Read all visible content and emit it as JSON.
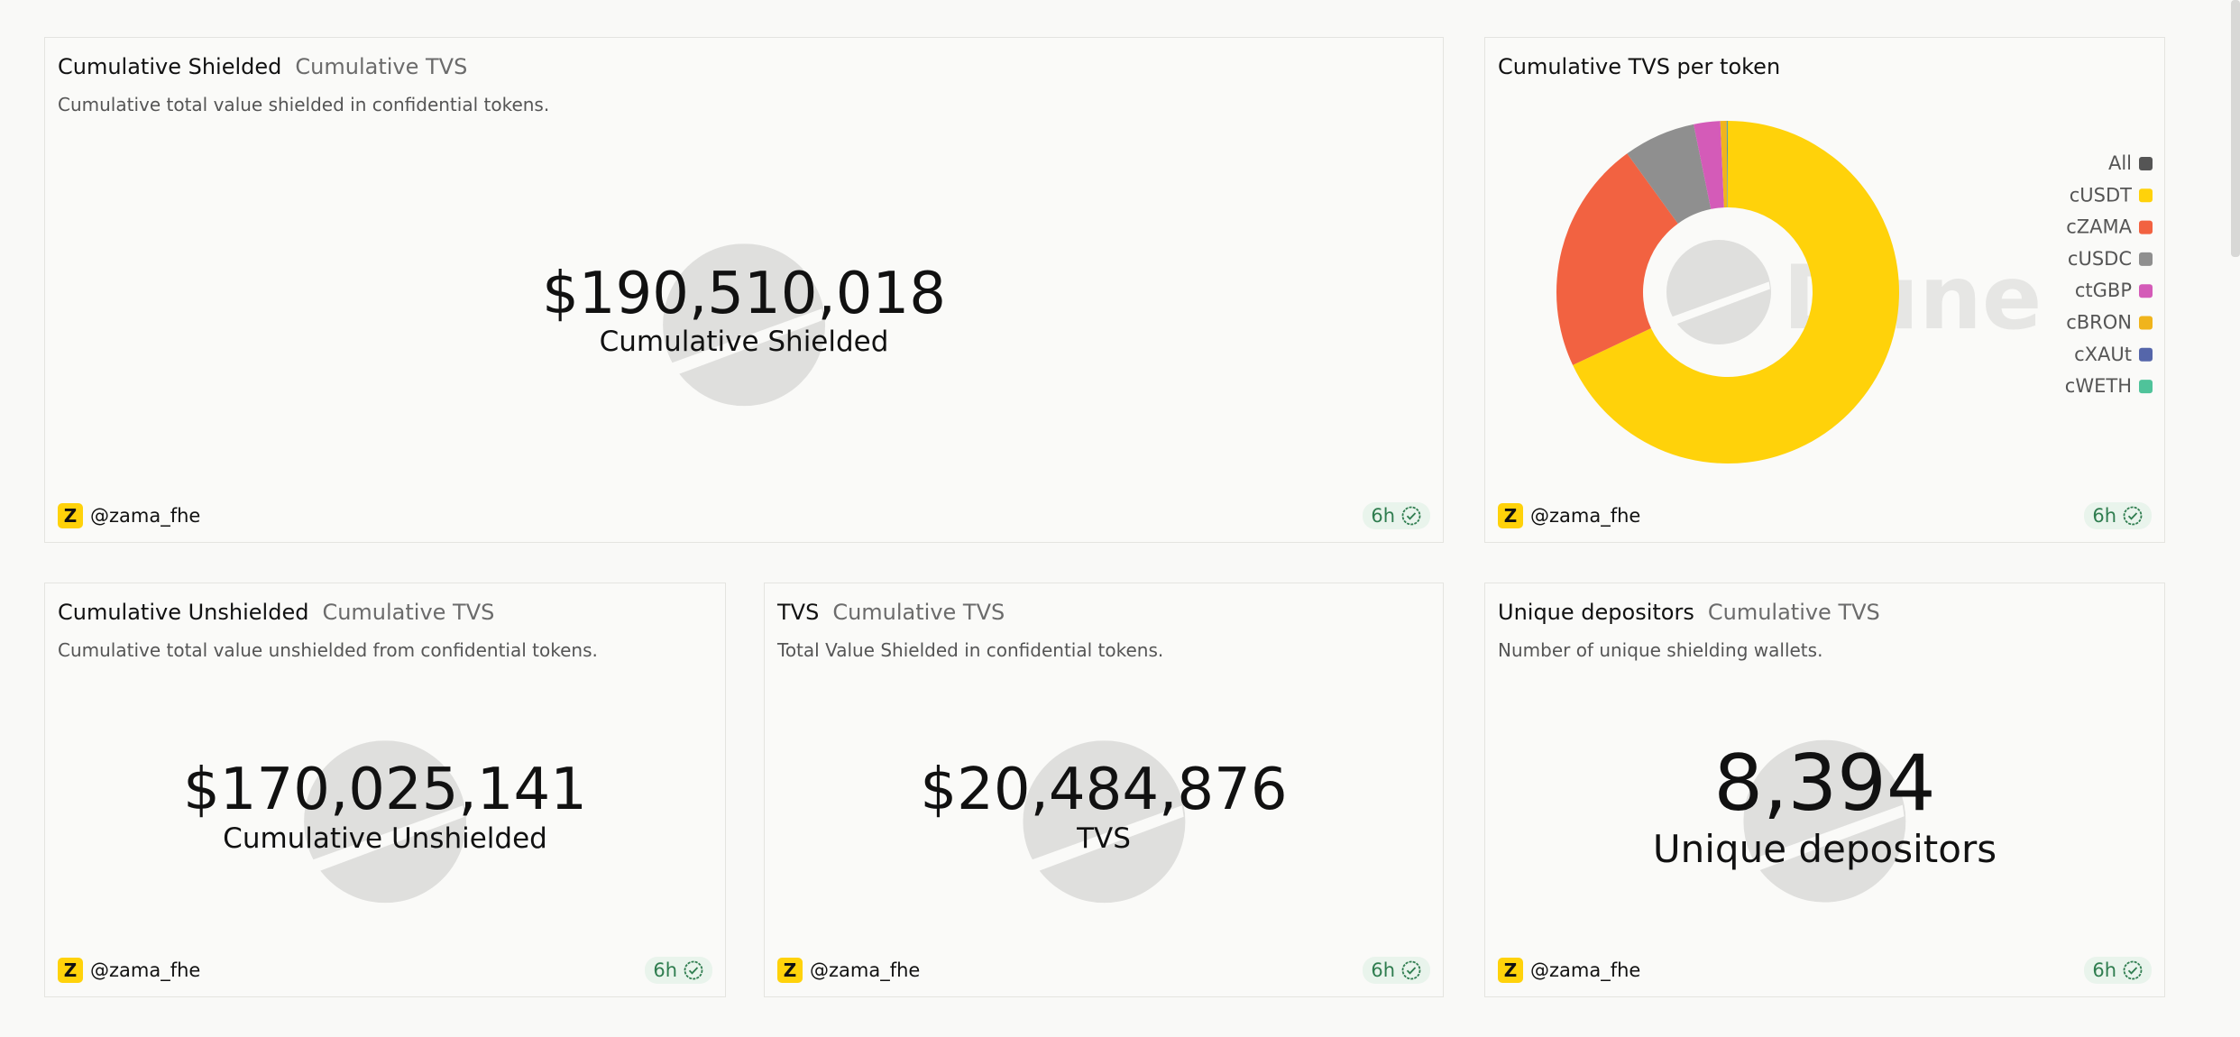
{
  "counters": [
    {
      "title": "Cumulative Shielded",
      "subtitle": "Cumulative TVS",
      "description": "Cumulative total value shielded in confidential tokens.",
      "value": "$190,510,018",
      "label": "Cumulative Shielded",
      "author": "@zama_fhe",
      "freshness": "6h"
    },
    {
      "title": "Cumulative Unshielded",
      "subtitle": "Cumulative TVS",
      "description": "Cumulative total value unshielded from confidential tokens.",
      "value": "$170,025,141",
      "label": "Cumulative Unshielded",
      "author": "@zama_fhe",
      "freshness": "6h"
    },
    {
      "title": "TVS",
      "subtitle": "Cumulative TVS",
      "description": "Total Value Shielded in confidential tokens.",
      "value": "$20,484,876",
      "label": "TVS",
      "author": "@zama_fhe",
      "freshness": "6h"
    },
    {
      "title": "Unique depositors",
      "subtitle": "Cumulative TVS",
      "description": "Number of unique shielding wallets.",
      "value": "8,394",
      "label": "Unique depositors",
      "author": "@zama_fhe",
      "freshness": "6h"
    }
  ],
  "chart_widget": {
    "author": "@zama_fhe",
    "freshness": "6h"
  },
  "chart_data": {
    "type": "pie",
    "title": "Cumulative TVS per token",
    "watermark": "Dune",
    "legend_all": {
      "label": "All",
      "color": "#555555"
    },
    "categories": [
      "cUSDT",
      "cZAMA",
      "cUSDC",
      "ctGBP",
      "cBRON",
      "cXAUt",
      "cWETH"
    ],
    "values": [
      68,
      22,
      6.8,
      2.5,
      0.6,
      0.05,
      0.05
    ],
    "colors": [
      "#ffd20a",
      "#f26241",
      "#8f8f8f",
      "#d45bb8",
      "#f0b41c",
      "#5566aa",
      "#4fc39a"
    ],
    "donut": true,
    "legend": "right"
  }
}
